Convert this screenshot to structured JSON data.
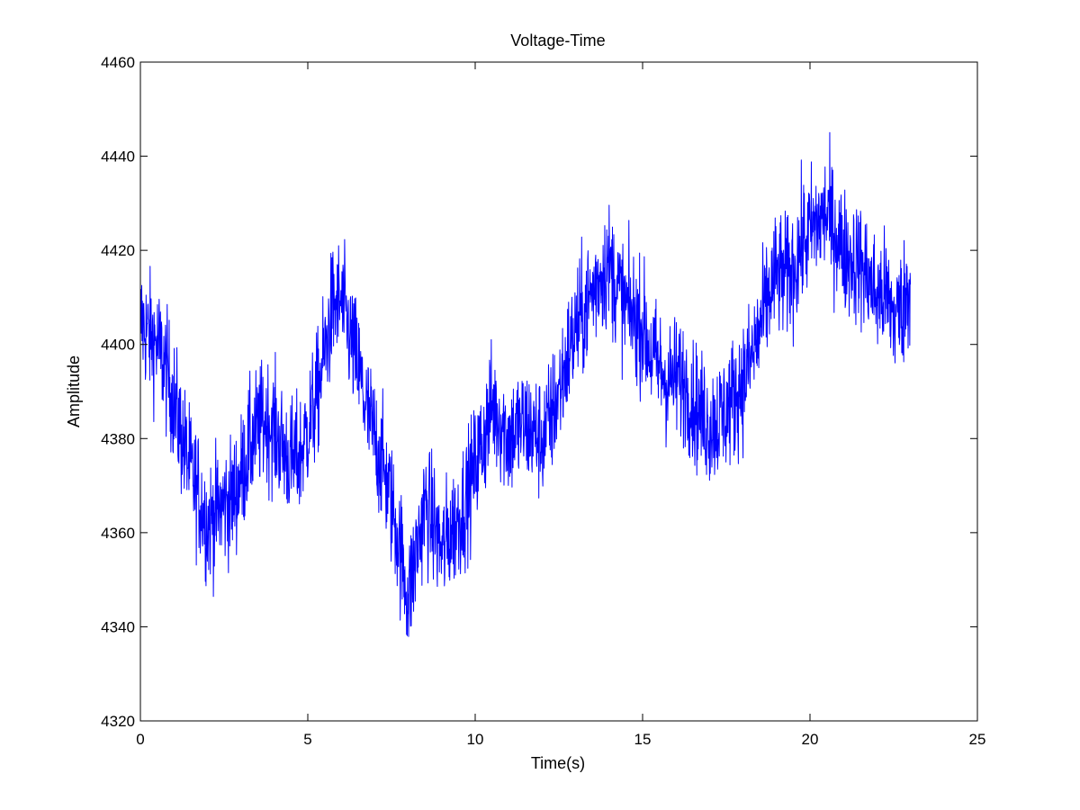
{
  "chart_data": {
    "type": "line",
    "title": "Voltage-Time",
    "xlabel": "Time(s)",
    "ylabel": "Amplitude",
    "xlim": [
      0,
      25
    ],
    "ylim": [
      4320,
      4460
    ],
    "xticks": [
      0,
      5,
      10,
      15,
      20,
      25
    ],
    "yticks": [
      4320,
      4340,
      4360,
      4380,
      4400,
      4420,
      4440,
      4460
    ],
    "grid": false,
    "line_color": "#0000ff",
    "series": [
      {
        "x": [
          0,
          0.25,
          0.5,
          0.75,
          1,
          1.25,
          1.5,
          1.75,
          2,
          2.25,
          2.5,
          2.75,
          3,
          3.25,
          3.5,
          3.75,
          4,
          4.25,
          4.5,
          4.75,
          5,
          5.25,
          5.5,
          5.75,
          6,
          6.25,
          6.5,
          6.75,
          7,
          7.25,
          7.5,
          7.75,
          8,
          8.25,
          8.5,
          8.75,
          9,
          9.25,
          9.5,
          9.75,
          10,
          10.25,
          10.5,
          10.75,
          11,
          11.25,
          11.5,
          11.75,
          12,
          12.25,
          12.5,
          12.75,
          13,
          13.25,
          13.5,
          13.75,
          14,
          14.25,
          14.5,
          14.75,
          15,
          15.25,
          15.5,
          15.75,
          16,
          16.25,
          16.5,
          16.75,
          17,
          17.25,
          17.5,
          17.75,
          18,
          18.25,
          18.5,
          18.75,
          19,
          19.25,
          19.5,
          19.75,
          20,
          20.25,
          20.5,
          20.75,
          21,
          21.25,
          21.5,
          21.75,
          22,
          22.25,
          22.5,
          22.75,
          23
        ],
        "values": [
          4405,
          4402,
          4400,
          4395,
          4388,
          4380,
          4373,
          4368,
          4362,
          4364,
          4366,
          4367,
          4372,
          4378,
          4382,
          4384,
          4382,
          4378,
          4375,
          4376,
          4382,
          4388,
          4398,
          4408,
          4409,
          4402,
          4395,
          4386,
          4380,
          4374,
          4366,
          4357,
          4346,
          4356,
          4366,
          4362,
          4356,
          4360,
          4363,
          4368,
          4374,
          4380,
          4387,
          4384,
          4380,
          4382,
          4383,
          4381,
          4380,
          4384,
          4390,
          4397,
          4403,
          4407,
          4411,
          4415,
          4417,
          4412,
          4408,
          4406,
          4404,
          4398,
          4395,
          4392,
          4393,
          4392,
          4388,
          4385,
          4383,
          4384,
          4386,
          4389,
          4392,
          4397,
          4403,
          4410,
          4415,
          4414,
          4416,
          4421,
          4424,
          4426,
          4428,
          4424,
          4420,
          4418,
          4417,
          4414,
          4410,
          4411,
          4406,
          4408,
          4413
        ]
      }
    ]
  }
}
